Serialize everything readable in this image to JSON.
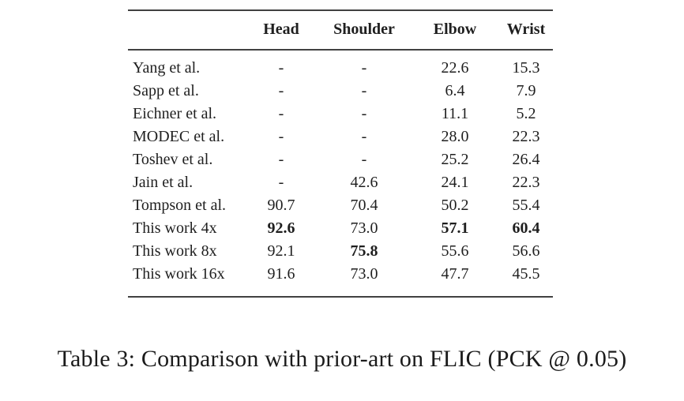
{
  "caption": "Table 3: Comparison with prior-art on FLIC (PCK @ 0.05)",
  "table": {
    "columns": [
      "Head",
      "Shoulder",
      "Elbow",
      "Wrist"
    ],
    "rows": [
      {
        "label": "Yang et al.",
        "values": [
          "-",
          "-",
          "22.6",
          "15.3"
        ],
        "bold": [
          false,
          false,
          false,
          false
        ]
      },
      {
        "label": "Sapp et al.",
        "values": [
          "-",
          "-",
          "6.4",
          "7.9"
        ],
        "bold": [
          false,
          false,
          false,
          false
        ]
      },
      {
        "label": "Eichner et al.",
        "values": [
          "-",
          "-",
          "11.1",
          "5.2"
        ],
        "bold": [
          false,
          false,
          false,
          false
        ]
      },
      {
        "label": "MODEC et al.",
        "values": [
          "-",
          "-",
          "28.0",
          "22.3"
        ],
        "bold": [
          false,
          false,
          false,
          false
        ]
      },
      {
        "label": "Toshev et al.",
        "values": [
          "-",
          "-",
          "25.2",
          "26.4"
        ],
        "bold": [
          false,
          false,
          false,
          false
        ]
      },
      {
        "label": "Jain et al.",
        "values": [
          "-",
          "42.6",
          "24.1",
          "22.3"
        ],
        "bold": [
          false,
          false,
          false,
          false
        ]
      },
      {
        "label": "Tompson et al.",
        "values": [
          "90.7",
          "70.4",
          "50.2",
          "55.4"
        ],
        "bold": [
          false,
          false,
          false,
          false
        ]
      },
      {
        "label": "This work 4x",
        "values": [
          "92.6",
          "73.0",
          "57.1",
          "60.4"
        ],
        "bold": [
          true,
          false,
          true,
          true
        ]
      },
      {
        "label": "This work 8x",
        "values": [
          "92.1",
          "75.8",
          "55.6",
          "56.6"
        ],
        "bold": [
          false,
          true,
          false,
          false
        ]
      },
      {
        "label": "This work 16x",
        "values": [
          "91.6",
          "73.0",
          "47.7",
          "45.5"
        ],
        "bold": [
          false,
          false,
          false,
          false
        ]
      }
    ]
  },
  "colors": {
    "text": "#1f1f1f",
    "rule": "#414141",
    "background": "#ffffff"
  }
}
